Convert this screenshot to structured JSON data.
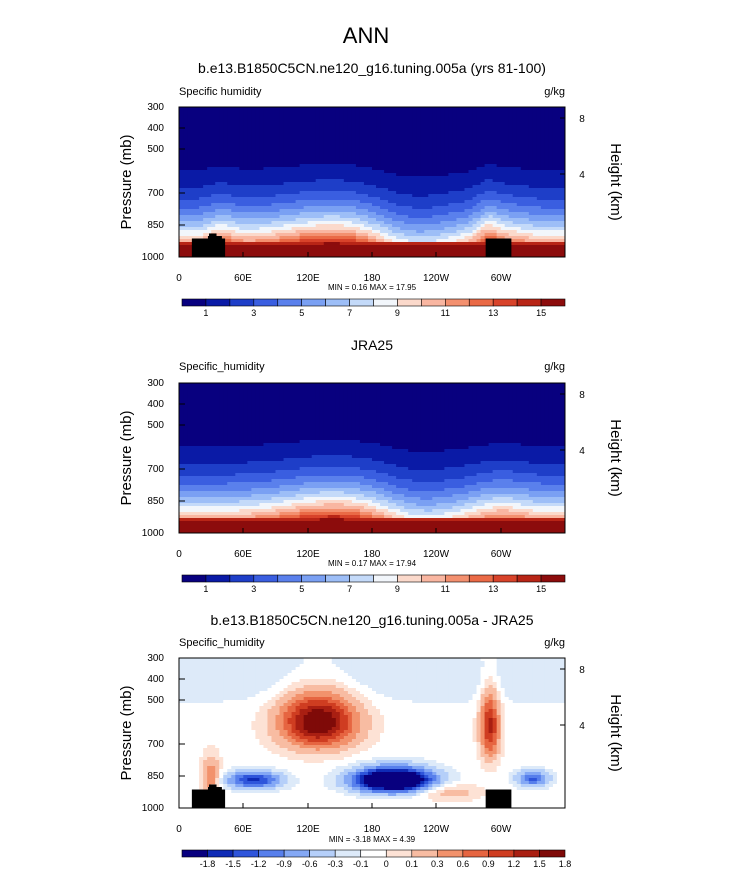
{
  "figure": {
    "title": "ANN",
    "colors": {
      "positive_scale": [
        "#08007f",
        "#0a1aa6",
        "#1e3ec8",
        "#3a5ee0",
        "#5a80ec",
        "#7aa0f3",
        "#9dbef7",
        "#c4daf9",
        "#f2f6fb",
        "#fbd9cb",
        "#f9b6a1",
        "#f3906f",
        "#ea6a46",
        "#d8432a",
        "#b82516",
        "#8c0c0c"
      ],
      "diff_scale": [
        "#08007f",
        "#0f2bb6",
        "#2f55db",
        "#577fec",
        "#84a8f5",
        "#b5cff9",
        "#ddeaf9",
        "#ffffff",
        "#fde2d5",
        "#f8bca2",
        "#f2926c",
        "#e66541",
        "#cf3d21",
        "#a91f12",
        "#7f0a08"
      ],
      "topography": "#000000"
    }
  },
  "chart_data": [
    {
      "type": "heatmap",
      "title": "b.e13.B1850C5CN.ne120_g16.tuning.005a (yrs 81-100)",
      "left_label": "Specific humidity",
      "units": "g/kg",
      "ylabel": "Pressure (mb)",
      "ylabel_right": "Height (km)",
      "yticks": [
        "300",
        "400",
        "500",
        "700",
        "850",
        "1000"
      ],
      "yticks_right": [
        "8",
        "4"
      ],
      "xticks": [
        "0",
        "60E",
        "120E",
        "180",
        "120W",
        "60W"
      ],
      "x_range": [
        0,
        360
      ],
      "ylim": [
        1000,
        300
      ],
      "stats": "MIN =  0.16  MAX =  17.95",
      "colorbar_labels": [
        "1",
        "3",
        "5",
        "7",
        "9",
        "11",
        "13",
        "15"
      ],
      "topography": true
    },
    {
      "type": "heatmap",
      "title": "JRA25",
      "left_label": "Specific_humidity",
      "units": "g/kg",
      "ylabel": "Pressure (mb)",
      "ylabel_right": "Height (km)",
      "yticks": [
        "300",
        "400",
        "500",
        "700",
        "850",
        "1000"
      ],
      "yticks_right": [
        "8",
        "4"
      ],
      "xticks": [
        "0",
        "60E",
        "120E",
        "180",
        "120W",
        "60W"
      ],
      "x_range": [
        0,
        360
      ],
      "ylim": [
        1000,
        300
      ],
      "stats": "MIN =  0.17  MAX = 17.94",
      "colorbar_labels": [
        "1",
        "3",
        "5",
        "7",
        "9",
        "11",
        "13",
        "15"
      ],
      "topography": false
    },
    {
      "type": "heatmap",
      "title": "b.e13.B1850C5CN.ne120_g16.tuning.005a - JRA25",
      "left_label": "Specific_humidity",
      "units": "g/kg",
      "ylabel": "Pressure (mb)",
      "ylabel_right": "Height (km)",
      "yticks": [
        "300",
        "400",
        "500",
        "700",
        "850",
        "1000"
      ],
      "yticks_right": [
        "8",
        "4"
      ],
      "xticks": [
        "0",
        "60E",
        "120E",
        "180",
        "120W",
        "60W"
      ],
      "x_range": [
        0,
        360
      ],
      "ylim": [
        1000,
        300
      ],
      "stats": "MIN = -3.18  MAX =  4.39",
      "colorbar_labels": [
        "-1.8",
        "-1.5",
        "-1.2",
        "-0.9",
        "-0.6",
        "-0.3",
        "-0.1",
        "0",
        "0.1",
        "0.3",
        "0.6",
        "0.9",
        "1.2",
        "1.5",
        "1.8"
      ],
      "topography": true
    }
  ]
}
